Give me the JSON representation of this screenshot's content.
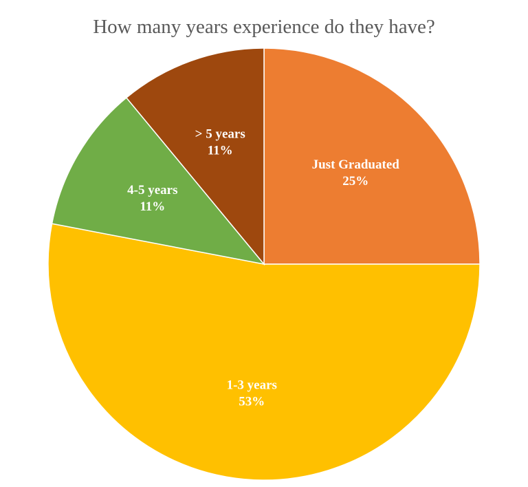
{
  "chart_data": {
    "type": "pie",
    "title": "How many years experience do they have?",
    "categories": [
      "Just Graduated",
      "1-3 years",
      "4-5 years",
      "> 5 years"
    ],
    "values": [
      25,
      53,
      11,
      11
    ],
    "value_labels": [
      "25%",
      "53%",
      "11%",
      "11%"
    ],
    "colors": [
      "#ED7D31",
      "#FFC000",
      "#70AD47",
      "#9E480E"
    ],
    "start": "12 o'clock",
    "direction": "clockwise",
    "legend": "none"
  }
}
